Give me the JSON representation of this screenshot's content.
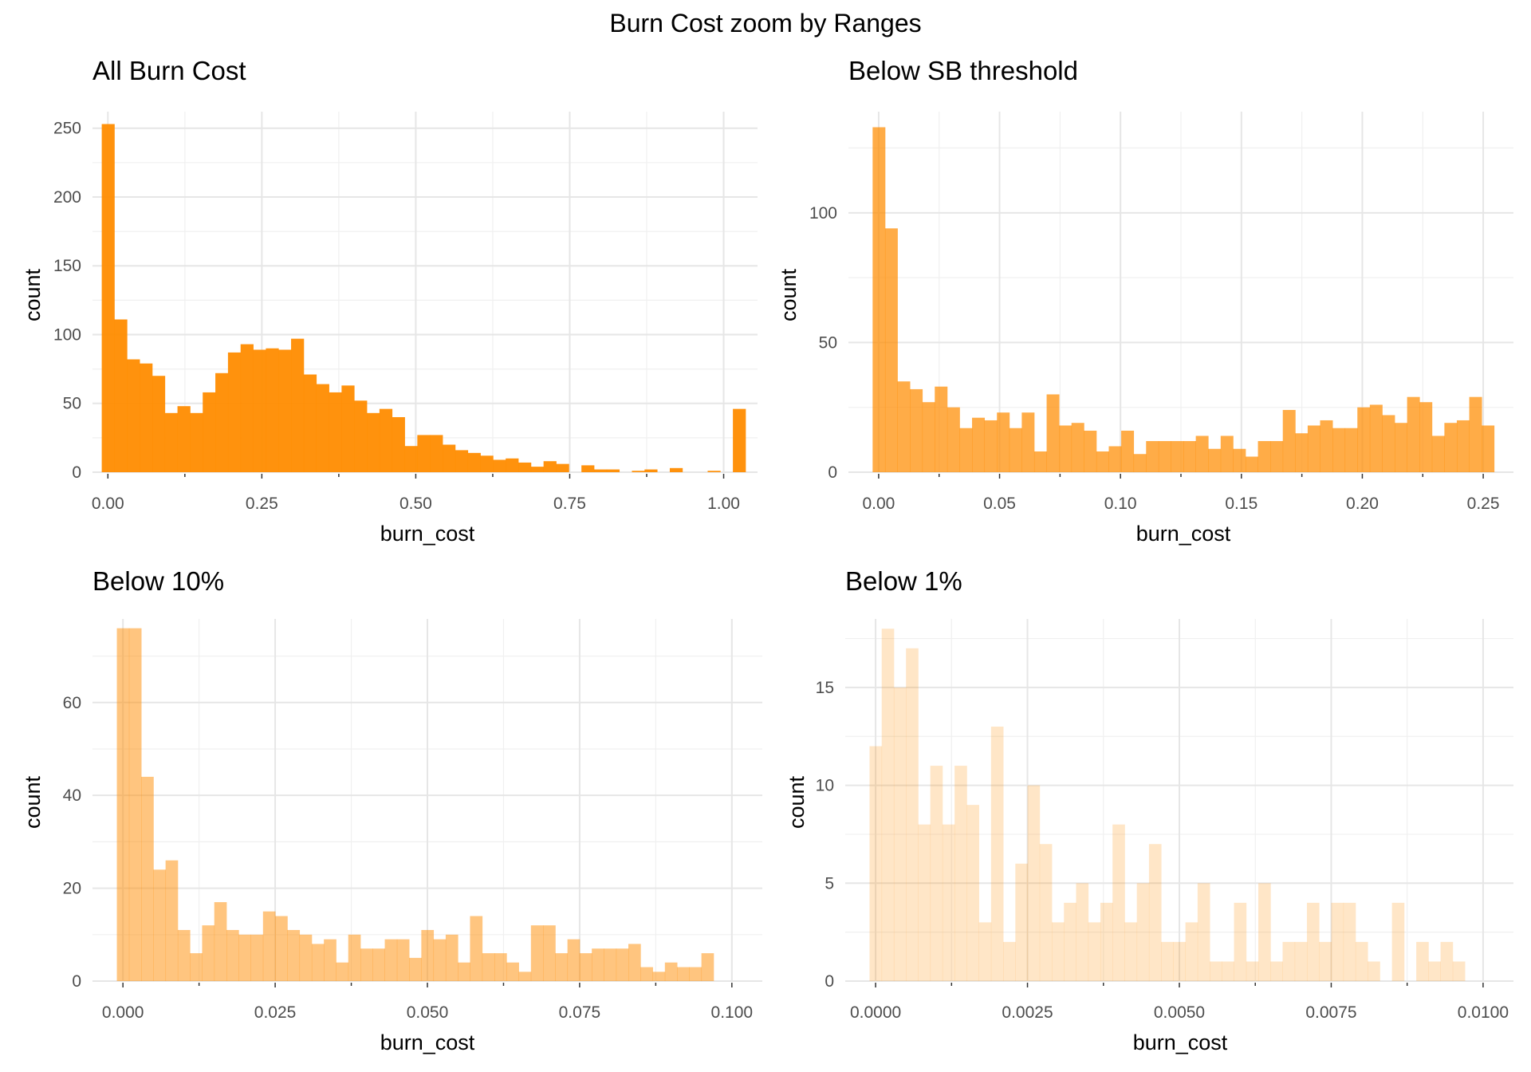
{
  "figure": {
    "title": "Burn Cost zoom by Ranges",
    "bar_color": "#FF8C00"
  },
  "chart_data": [
    {
      "type": "bar",
      "title": "All Burn Cost",
      "xlabel": "burn_cost",
      "ylabel": "count",
      "xlim": [
        -0.025,
        1.055
      ],
      "ylim": [
        0,
        262
      ],
      "x_major_ticks": [
        0,
        0.25,
        0.5,
        0.75,
        1
      ],
      "x_tick_labels": [
        "0.00",
        "0.25",
        "0.50",
        "0.75",
        "1.00"
      ],
      "y_major_ticks": [
        0,
        50,
        100,
        150,
        200,
        250
      ],
      "y_tick_labels": [
        "0",
        "50",
        "100",
        "150",
        "200",
        "250"
      ],
      "bin_start": -0.01,
      "bin_width": 0.0205,
      "opacity": 0.95,
      "counts": [
        253,
        111,
        82,
        79,
        70,
        43,
        48,
        43,
        58,
        72,
        87,
        93,
        89,
        90,
        89,
        97,
        71,
        64,
        58,
        63,
        52,
        43,
        46,
        40,
        19,
        27,
        27,
        20,
        16,
        14,
        12,
        9,
        10,
        7,
        4,
        8,
        6,
        0,
        5,
        2,
        2,
        0,
        1,
        2,
        0,
        3,
        0,
        0,
        1,
        0,
        46
      ]
    },
    {
      "type": "bar",
      "title": "Below SB threshold",
      "xlabel": "burn_cost",
      "ylabel": "count",
      "xlim": [
        -0.0125,
        0.2625
      ],
      "ylim": [
        0,
        139
      ],
      "x_major_ticks": [
        0,
        0.05,
        0.1,
        0.15,
        0.2,
        0.25
      ],
      "x_tick_labels": [
        "0.00",
        "0.05",
        "0.10",
        "0.15",
        "0.20",
        "0.25"
      ],
      "y_major_ticks": [
        0,
        50,
        100
      ],
      "y_tick_labels": [
        "0",
        "50",
        "100"
      ],
      "bin_start": -0.0025,
      "bin_width": 0.00514,
      "opacity": 0.72,
      "counts": [
        133,
        94,
        35,
        32,
        27,
        33,
        25,
        17,
        21,
        20,
        23,
        17,
        23,
        8,
        30,
        18,
        19,
        16,
        8,
        10,
        16,
        7,
        12,
        12,
        12,
        12,
        14,
        9,
        14,
        9,
        6,
        12,
        12,
        24,
        15,
        18,
        20,
        17,
        17,
        25,
        26,
        22,
        19,
        29,
        27,
        14,
        19,
        20,
        29,
        18
      ]
    },
    {
      "type": "bar",
      "title": "Below 10%",
      "xlabel": "burn_cost",
      "ylabel": "count",
      "xlim": [
        -0.005,
        0.105
      ],
      "ylim": [
        0,
        78
      ],
      "x_major_ticks": [
        0,
        0.025,
        0.05,
        0.075,
        0.1
      ],
      "x_tick_labels": [
        "0.000",
        "0.025",
        "0.050",
        "0.075",
        "0.100"
      ],
      "y_major_ticks": [
        0,
        20,
        40,
        60
      ],
      "y_tick_labels": [
        "0",
        "20",
        "40",
        "60"
      ],
      "bin_start": -0.001,
      "bin_width": 0.002,
      "opacity": 0.5,
      "counts": [
        76,
        76,
        44,
        24,
        26,
        11,
        6,
        12,
        17,
        11,
        10,
        10,
        15,
        14,
        11,
        10,
        8,
        9,
        4,
        10,
        7,
        7,
        9,
        9,
        5,
        11,
        9,
        10,
        4,
        14,
        6,
        6,
        4,
        2,
        12,
        12,
        6,
        9,
        6,
        7,
        7,
        7,
        8,
        3,
        2,
        4,
        3,
        3,
        6
      ]
    },
    {
      "type": "bar",
      "title": "Below 1%",
      "xlabel": "burn_cost",
      "ylabel": "count",
      "xlim": [
        -0.0005,
        0.0105
      ],
      "ylim": [
        0,
        18.5
      ],
      "x_major_ticks": [
        0,
        0.0025,
        0.005,
        0.0075,
        0.01
      ],
      "x_tick_labels": [
        "0.0000",
        "0.0025",
        "0.0050",
        "0.0075",
        "0.0100"
      ],
      "y_major_ticks": [
        0,
        5,
        10,
        15
      ],
      "y_tick_labels": [
        "0",
        "5",
        "10",
        "15"
      ],
      "bin_start": -0.0001,
      "bin_width": 0.0002,
      "opacity": 0.22,
      "counts": [
        12,
        18,
        15,
        17,
        8,
        11,
        8,
        11,
        9,
        3,
        13,
        2,
        6,
        10,
        7,
        3,
        4,
        5,
        3,
        4,
        8,
        3,
        5,
        7,
        2,
        2,
        3,
        5,
        1,
        1,
        4,
        1,
        5,
        1,
        2,
        2,
        4,
        2,
        4,
        4,
        2,
        1,
        0,
        4,
        0,
        2,
        1,
        2,
        1
      ]
    }
  ]
}
